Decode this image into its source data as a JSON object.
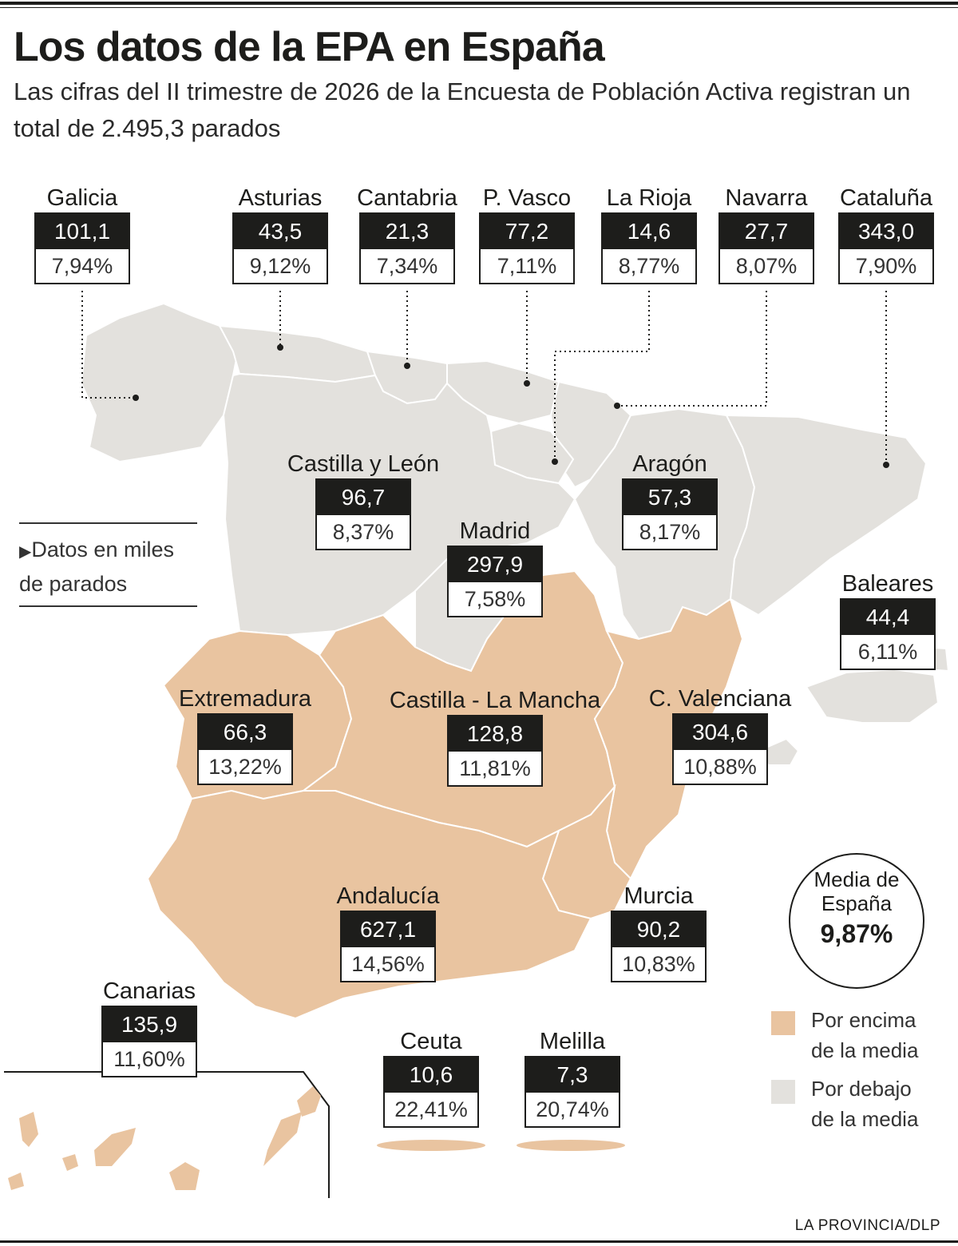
{
  "title": "Los datos de la EPA en España",
  "subtitle": "Las cifras del II trimestre de 2026 de la Encuesta de Población Activa registran un total de 2.495,3 parados",
  "note": "Datos en miles de parados",
  "colors": {
    "above": "#e9c4a0",
    "below": "#e3e1dd",
    "dark": "#1d1d1b",
    "border": "#ffffff"
  },
  "regions": [
    {
      "name": "Galicia",
      "value": "101,1",
      "pct": "7,94%",
      "category": "below"
    },
    {
      "name": "Asturias",
      "value": "43,5",
      "pct": "9,12%",
      "category": "below"
    },
    {
      "name": "Cantabria",
      "value": "21,3",
      "pct": "7,34%",
      "category": "below"
    },
    {
      "name": "P. Vasco",
      "value": "77,2",
      "pct": "7,11%",
      "category": "below"
    },
    {
      "name": "La Rioja",
      "value": "14,6",
      "pct": "8,77%",
      "category": "below"
    },
    {
      "name": "Navarra",
      "value": "27,7",
      "pct": "8,07%",
      "category": "below"
    },
    {
      "name": "Cataluña",
      "value": "343,0",
      "pct": "7,90%",
      "category": "below"
    },
    {
      "name": "Castilla y León",
      "value": "96,7",
      "pct": "8,37%",
      "category": "below"
    },
    {
      "name": "Aragón",
      "value": "57,3",
      "pct": "8,17%",
      "category": "below"
    },
    {
      "name": "Madrid",
      "value": "297,9",
      "pct": "7,58%",
      "category": "below"
    },
    {
      "name": "Baleares",
      "value": "44,4",
      "pct": "6,11%",
      "category": "below"
    },
    {
      "name": "Extremadura",
      "value": "66,3",
      "pct": "13,22%",
      "category": "above"
    },
    {
      "name": "Castilla - La Mancha",
      "value": "128,8",
      "pct": "11,81%",
      "category": "above"
    },
    {
      "name": "C. Valenciana",
      "value": "304,6",
      "pct": "10,88%",
      "category": "above"
    },
    {
      "name": "Andalucía",
      "value": "627,1",
      "pct": "14,56%",
      "category": "above"
    },
    {
      "name": "Murcia",
      "value": "90,2",
      "pct": "10,83%",
      "category": "above"
    },
    {
      "name": "Canarias",
      "value": "135,9",
      "pct": "11,60%",
      "category": "above"
    },
    {
      "name": "Ceuta",
      "value": "10,6",
      "pct": "22,41%",
      "category": "above"
    },
    {
      "name": "Melilla",
      "value": "7,3",
      "pct": "20,74%",
      "category": "above"
    }
  ],
  "average": {
    "label": "Media de España",
    "value": "9,87%"
  },
  "legend": [
    {
      "label": "Por encima de la media",
      "color": "#e9c4a0"
    },
    {
      "label": "Por debajo de la media",
      "color": "#e3e1dd"
    }
  ],
  "source": "LA PROVINCIA/DLP"
}
